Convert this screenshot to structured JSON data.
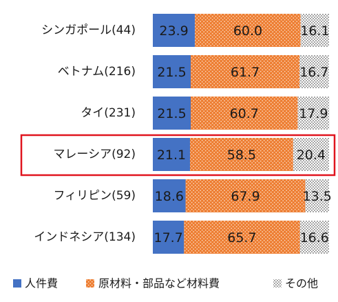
{
  "chart_data": {
    "type": "bar",
    "orientation": "horizontal",
    "stacked": true,
    "categories": [
      "シンガポール(44)",
      "ベトナム(216)",
      "タイ(231)",
      "マレーシア(92)",
      "フィリピン(59)",
      "インドネシア(134)"
    ],
    "series": [
      {
        "name": "人件費",
        "values": [
          23.9,
          21.5,
          21.5,
          21.1,
          18.6,
          17.7
        ],
        "color": "#4472c4",
        "pattern": "solid"
      },
      {
        "name": "原材料・部品など材料費",
        "values": [
          60.0,
          61.7,
          60.7,
          58.5,
          67.9,
          65.7
        ],
        "color": "#ed7d31",
        "pattern": "dotted"
      },
      {
        "name": "その他",
        "values": [
          16.1,
          16.7,
          17.9,
          20.4,
          13.5,
          16.6
        ],
        "color": "#a5a5a5",
        "pattern": "checker"
      }
    ],
    "value_labels": [
      [
        "23.9",
        "60.0",
        "16.1"
      ],
      [
        "21.5",
        "61.7",
        "16.7"
      ],
      [
        "21.5",
        "60.7",
        "17.9"
      ],
      [
        "21.1",
        "58.5",
        "20.4"
      ],
      [
        "18.6",
        "67.9",
        "13.5"
      ],
      [
        "17.7",
        "65.7",
        "16.6"
      ]
    ],
    "xlim": [
      0,
      100
    ],
    "highlight_category": "マレーシア(92)",
    "highlight_color": "#e0141e",
    "legend_position": "bottom",
    "gridlines": false
  }
}
